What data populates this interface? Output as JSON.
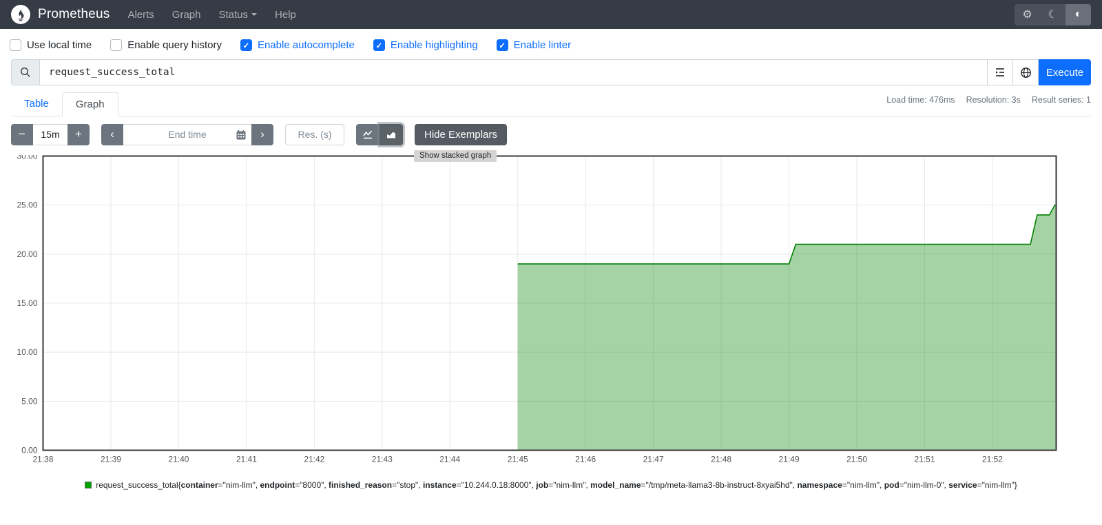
{
  "navbar": {
    "brand": "Prometheus",
    "items": [
      {
        "label": "Alerts"
      },
      {
        "label": "Graph"
      },
      {
        "label": "Status",
        "has_caret": true
      },
      {
        "label": "Help"
      }
    ],
    "theme": {
      "settings_icon": "⚙",
      "moon_icon": "☾",
      "contrast_icon": "◐",
      "active": "contrast"
    }
  },
  "options": [
    {
      "label": "Use local time",
      "checked": false
    },
    {
      "label": "Enable query history",
      "checked": false
    },
    {
      "label": "Enable autocomplete",
      "checked": true
    },
    {
      "label": "Enable highlighting",
      "checked": true
    },
    {
      "label": "Enable linter",
      "checked": true
    }
  ],
  "query": {
    "value": "request_success_total",
    "execute_label": "Execute"
  },
  "tabs": [
    {
      "label": "Table",
      "active": false
    },
    {
      "label": "Graph",
      "active": true
    }
  ],
  "stats": {
    "load_time": "Load time: 476ms",
    "resolution": "Resolution: 3s",
    "result_series": "Result series: 1"
  },
  "controls": {
    "range_minus": "−",
    "range_value": "15m",
    "range_plus": "+",
    "back_chevron": "‹",
    "forward_chevron": "›",
    "end_time_placeholder": "End time",
    "res_placeholder": "Res. (s)",
    "hide_exemplars_label": "Hide Exemplars",
    "tooltip": "Show stacked graph"
  },
  "chart_data": {
    "type": "area",
    "title": "",
    "xlabel": "",
    "ylabel": "",
    "x_ticks": [
      "21:38",
      "21:39",
      "21:40",
      "21:41",
      "21:42",
      "21:43",
      "21:44",
      "21:45",
      "21:46",
      "21:47",
      "21:48",
      "21:49",
      "21:50",
      "21:51",
      "21:52"
    ],
    "x_tick_minutes": [
      0,
      1,
      2,
      3,
      4,
      5,
      6,
      7,
      8,
      9,
      10,
      11,
      12,
      13,
      14
    ],
    "x_range": [
      0,
      14.94
    ],
    "ylim": [
      0,
      30
    ],
    "y_ticks": [
      0,
      5,
      10,
      15,
      20,
      25,
      30
    ],
    "y_tick_labels": [
      "0.00",
      "5.00",
      "10.00",
      "15.00",
      "20.00",
      "25.00",
      "30.00"
    ],
    "grid_on": true,
    "grid_color": "#e8e8e8",
    "border_color": "#373737",
    "series": [
      {
        "name": "request_success_total",
        "color": "#008000",
        "fill_opacity": 0.35,
        "points": [
          [
            7.0,
            19
          ],
          [
            11.0,
            19
          ],
          [
            11.1,
            21
          ],
          [
            14.56,
            21
          ],
          [
            14.66,
            24
          ],
          [
            14.84,
            24
          ],
          [
            14.92,
            25
          ],
          [
            14.94,
            25
          ]
        ]
      }
    ]
  },
  "legend": {
    "swatch_color": "#00a000",
    "metric": "request_success_total",
    "labels": [
      [
        "container",
        "nim-llm"
      ],
      [
        "endpoint",
        "8000"
      ],
      [
        "finished_reason",
        "stop"
      ],
      [
        "instance",
        "10.244.0.18:8000"
      ],
      [
        "job",
        "nim-llm"
      ],
      [
        "model_name",
        "/tmp/meta-llama3-8b-instruct-8xyai5hd"
      ],
      [
        "namespace",
        "nim-llm"
      ],
      [
        "pod",
        "nim-llm-0"
      ],
      [
        "service",
        "nim-llm"
      ]
    ]
  }
}
